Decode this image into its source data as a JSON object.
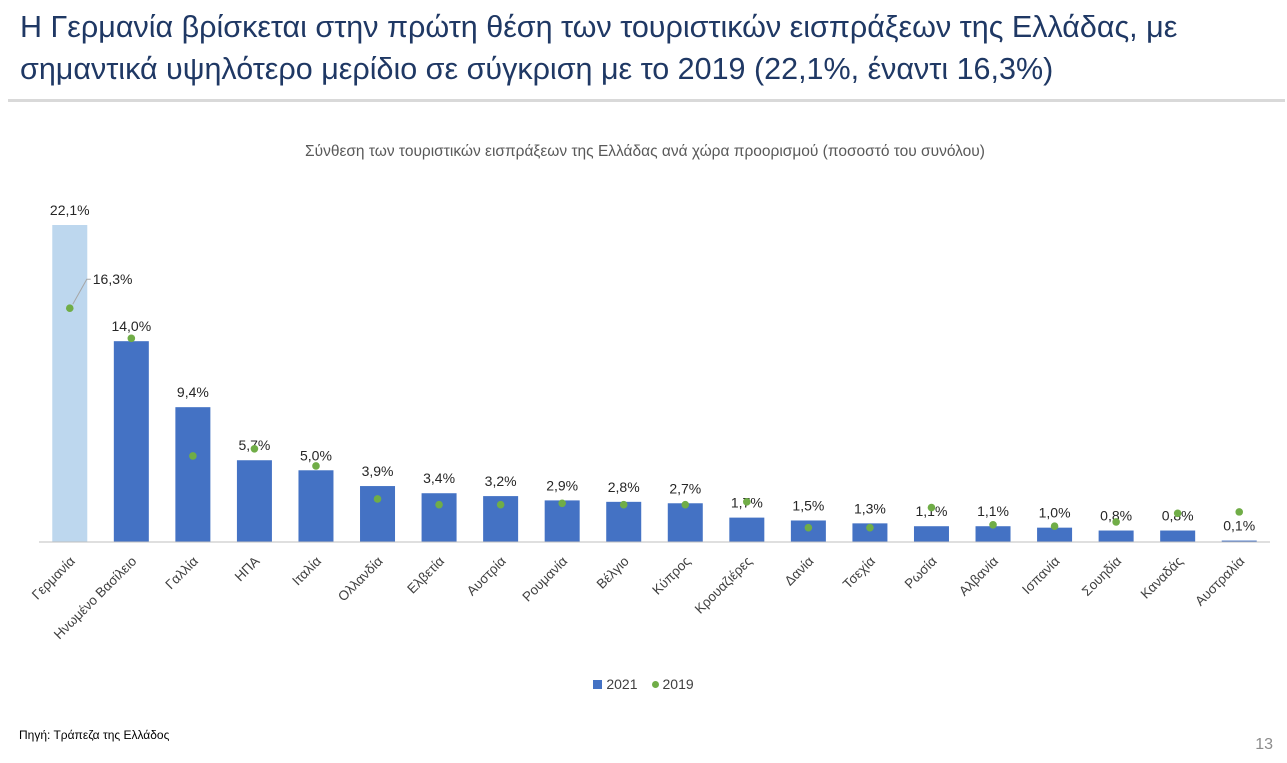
{
  "slide": {
    "headline": "Η Γερμανία βρίσκεται στην πρώτη θέση των τουριστικών εισπράξεων της Ελλάδας, με σημαντικά υψηλότερο μερίδιο σε σύγκριση με το 2019 (22,1%, έναντι 16,3%)",
    "source": "Πηγή: Τράπεζα της Ελλάδος",
    "page_number": "13"
  },
  "chart_data": {
    "type": "bar",
    "title": "Σύνθεση των τουριστικών εισπράξεων της Ελλάδας ανά χώρα προορισμού (ποσοστό του συνόλου)",
    "xlabel": "",
    "ylabel": "",
    "ylim": [
      0,
      22.1
    ],
    "grid": false,
    "legend_position": "bottom",
    "categories": [
      "Γερμανία",
      "Ηνωμένο Βασίλειο",
      "Γαλλία",
      "ΗΠΑ",
      "Ιταλία",
      "Ολλανδία",
      "Ελβετία",
      "Αυστρία",
      "Ρουμανία",
      "Βέλγιο",
      "Κύπρος",
      "Κρουαζιέρες",
      "Δανία",
      "Τσεχία",
      "Ρωσία",
      "Αλβανία",
      "Ισπανία",
      "Σουηδία",
      "Καναδάς",
      "Αυστραλία"
    ],
    "series": [
      {
        "name": "2021",
        "type": "bar",
        "color": "#4472c4",
        "highlight_color": "#bdd7ee",
        "values": [
          22.1,
          14.0,
          9.4,
          5.7,
          5.0,
          3.9,
          3.4,
          3.2,
          2.9,
          2.8,
          2.7,
          1.7,
          1.5,
          1.3,
          1.1,
          1.1,
          1.0,
          0.8,
          0.8,
          0.1
        ],
        "data_labels": [
          "22,1%",
          "14,0%",
          "9,4%",
          "5,7%",
          "5,0%",
          "3,9%",
          "3,4%",
          "3,2%",
          "2,9%",
          "2,8%",
          "2,7%",
          "1,7%",
          "1,5%",
          "1,3%",
          "1,1%",
          "1,1%",
          "1,0%",
          "0,8%",
          "0,8%",
          "0,1%"
        ]
      },
      {
        "name": "2019",
        "type": "scatter",
        "color": "#70ad47",
        "values": [
          16.3,
          14.2,
          6.0,
          6.5,
          5.3,
          3.0,
          2.6,
          2.6,
          2.7,
          2.6,
          2.6,
          2.8,
          1.0,
          1.0,
          2.4,
          1.2,
          1.1,
          1.4,
          2.0,
          2.1
        ],
        "annotation": {
          "index": 0,
          "label": "16,3%"
        }
      }
    ]
  }
}
